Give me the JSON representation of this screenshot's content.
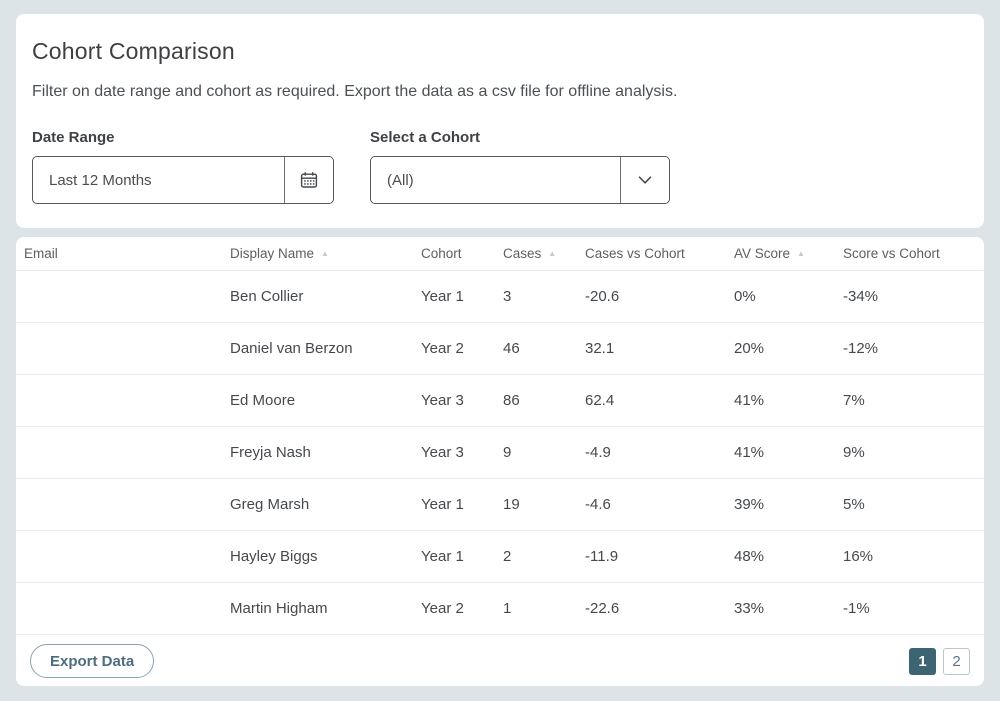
{
  "header": {
    "title": "Cohort Comparison",
    "subtitle": "Filter on date range and cohort as required. Export the data as a csv file for offline analysis."
  },
  "filters": {
    "date_range": {
      "label": "Date Range",
      "value": "Last 12 Months",
      "icon": "calendar-icon"
    },
    "cohort": {
      "label": "Select a Cohort",
      "value": "(All)",
      "icon": "chevron-down-icon"
    }
  },
  "table": {
    "sort_asc_icon": "▲",
    "fields": [
      "email",
      "display_name",
      "cohort",
      "cases",
      "cases_vs_cohort",
      "av_score",
      "score_vs_cohort"
    ],
    "columns": [
      {
        "label": "Email",
        "sortable": false
      },
      {
        "label": "Display Name",
        "sortable": true
      },
      {
        "label": "Cohort",
        "sortable": false
      },
      {
        "label": "Cases",
        "sortable": true
      },
      {
        "label": "Cases vs Cohort",
        "sortable": false
      },
      {
        "label": "AV Score",
        "sortable": true
      },
      {
        "label": "Score vs Cohort",
        "sortable": false
      }
    ],
    "rows": [
      {
        "email": "",
        "display_name": "Ben Collier",
        "cohort": "Year 1",
        "cases": "3",
        "cases_vs_cohort": "-20.6",
        "av_score": "0%",
        "score_vs_cohort": "-34%"
      },
      {
        "email": "",
        "display_name": "Daniel van Berzon",
        "cohort": "Year 2",
        "cases": "46",
        "cases_vs_cohort": "32.1",
        "av_score": "20%",
        "score_vs_cohort": "-12%"
      },
      {
        "email": "",
        "display_name": "Ed Moore",
        "cohort": "Year 3",
        "cases": "86",
        "cases_vs_cohort": "62.4",
        "av_score": "41%",
        "score_vs_cohort": "7%"
      },
      {
        "email": "",
        "display_name": "Freyja Nash",
        "cohort": "Year 3",
        "cases": "9",
        "cases_vs_cohort": "-4.9",
        "av_score": "41%",
        "score_vs_cohort": "9%"
      },
      {
        "email": "",
        "display_name": "Greg Marsh",
        "cohort": "Year 1",
        "cases": "19",
        "cases_vs_cohort": "-4.6",
        "av_score": "39%",
        "score_vs_cohort": "5%"
      },
      {
        "email": "",
        "display_name": "Hayley Biggs",
        "cohort": "Year 1",
        "cases": "2",
        "cases_vs_cohort": "-11.9",
        "av_score": "48%",
        "score_vs_cohort": "16%"
      },
      {
        "email": "",
        "display_name": "Martin Higham",
        "cohort": "Year 2",
        "cases": "1",
        "cases_vs_cohort": "-22.6",
        "av_score": "33%",
        "score_vs_cohort": "-1%"
      }
    ]
  },
  "footer": {
    "export_label": "Export Data",
    "pagination": [
      {
        "label": "1",
        "active": true
      },
      {
        "label": "2",
        "active": false
      }
    ]
  },
  "colors": {
    "page_background": "#dce4e7",
    "card_background": "#ffffff",
    "accent_active_page": "#3d6472",
    "input_border": "#55595c",
    "row_separator": "#ebeced",
    "sort_arrow": "#c6c9cb",
    "export_button_text": "#4d6c7d"
  }
}
